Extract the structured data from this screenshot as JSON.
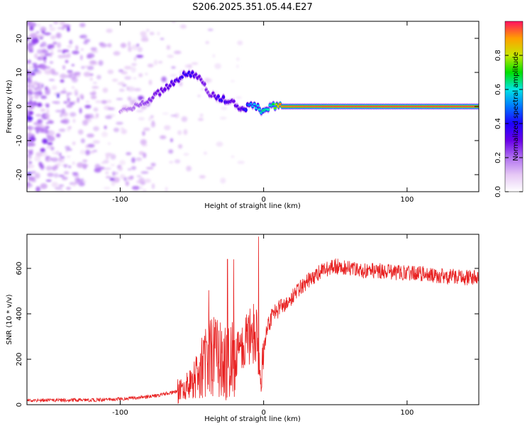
{
  "title": "S206.2025.351.05.44.E27",
  "chart_data": [
    {
      "type": "heatmap",
      "title": "S206.2025.351.05.44.E27",
      "xlabel": "Height of straight line (km)",
      "ylabel": "Frequency (Hz)",
      "xlim": [
        -165,
        150
      ],
      "ylim": [
        -25,
        25
      ],
      "xticks": [
        -100,
        0,
        100
      ],
      "yticks": [
        -20,
        -10,
        0,
        10,
        20
      ],
      "colorbar": {
        "label": "Normalized spectral amplitude",
        "range": [
          0,
          1
        ],
        "ticks": [
          0.0,
          0.2,
          0.4,
          0.6,
          0.8
        ],
        "tick_labels": [
          "0.0",
          "0.2",
          "0.4",
          "0.6",
          "0.8"
        ],
        "colormap": [
          "#ffffff",
          "#e6c8f5",
          "#b070f0",
          "#6a00e8",
          "#1e00ff",
          "#0077ff",
          "#00e5e5",
          "#00e000",
          "#c8e800",
          "#ffa000",
          "#ff1060"
        ]
      },
      "tonal_track": [
        {
          "x": -100,
          "y": -1,
          "amp": 0.15
        },
        {
          "x": -90,
          "y": 0,
          "amp": 0.2
        },
        {
          "x": -80,
          "y": 2,
          "amp": 0.25
        },
        {
          "x": -70,
          "y": 5,
          "amp": 0.3
        },
        {
          "x": -60,
          "y": 8,
          "amp": 0.35
        },
        {
          "x": -52,
          "y": 10,
          "amp": 0.4
        },
        {
          "x": -45,
          "y": 9,
          "amp": 0.3
        },
        {
          "x": -38,
          "y": 4,
          "amp": 0.25
        },
        {
          "x": -30,
          "y": 2,
          "amp": 0.4
        },
        {
          "x": -22,
          "y": 2,
          "amp": 0.3
        },
        {
          "x": -15,
          "y": -1,
          "amp": 0.35
        },
        {
          "x": -8,
          "y": 1,
          "amp": 0.55
        },
        {
          "x": 0,
          "y": -2,
          "amp": 0.65
        },
        {
          "x": 5,
          "y": 0,
          "amp": 0.6
        },
        {
          "x": 12,
          "y": 0,
          "amp": 0.95
        },
        {
          "x": 50,
          "y": 0,
          "amp": 0.98
        },
        {
          "x": 100,
          "y": 0,
          "amp": 0.98
        },
        {
          "x": 150,
          "y": 0,
          "amp": 0.98
        }
      ]
    },
    {
      "type": "line",
      "xlabel": "Height of straight line (km)",
      "ylabel": "SNR (10 * v/v)",
      "xlim": [
        -165,
        150
      ],
      "ylim": [
        0,
        750
      ],
      "xticks": [
        -100,
        0,
        100
      ],
      "yticks": [
        0,
        200,
        400,
        600
      ],
      "series": [
        {
          "name": "SNR",
          "color": "#e82020",
          "x": [
            -165,
            -140,
            -120,
            -100,
            -80,
            -70,
            -60,
            -50,
            -45,
            -40,
            -38,
            -35,
            -30,
            -25,
            -20,
            -15,
            -10,
            -5,
            -2,
            0,
            2,
            5,
            10,
            15,
            20,
            25,
            30,
            40,
            50,
            60,
            70,
            80,
            90,
            100,
            110,
            120,
            130,
            140,
            150
          ],
          "values": [
            20,
            20,
            20,
            25,
            35,
            45,
            60,
            90,
            130,
            200,
            280,
            230,
            190,
            200,
            210,
            260,
            300,
            350,
            80,
            250,
            320,
            380,
            420,
            450,
            480,
            510,
            540,
            590,
            610,
            600,
            590,
            590,
            580,
            580,
            575,
            570,
            565,
            560,
            560
          ]
        }
      ]
    }
  ]
}
